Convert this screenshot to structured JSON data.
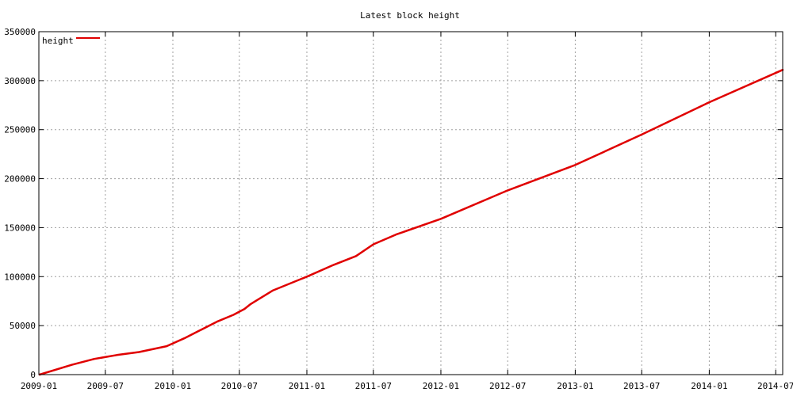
{
  "chart_data": {
    "type": "line",
    "title": "Latest block height",
    "xlabel": "",
    "ylabel": "",
    "x_ticks": [
      "2009-01",
      "2009-07",
      "2010-01",
      "2010-07",
      "2011-01",
      "2011-07",
      "2012-01",
      "2012-07",
      "2013-01",
      "2013-07",
      "2014-01",
      "2014-07"
    ],
    "y_ticks": [
      0,
      50000,
      100000,
      150000,
      200000,
      250000,
      300000,
      350000
    ],
    "xlim": [
      "2009-01-01",
      "2014-07-20"
    ],
    "ylim": [
      0,
      350000
    ],
    "grid": true,
    "legend_position": "top-left",
    "series": [
      {
        "name": "height",
        "color": "#e00000",
        "points": [
          [
            "2009-01-03",
            0
          ],
          [
            "2009-04-01",
            10000
          ],
          [
            "2009-06-01",
            16000
          ],
          [
            "2009-08-01",
            20000
          ],
          [
            "2009-10-01",
            23000
          ],
          [
            "2009-12-15",
            29000
          ],
          [
            "2010-02-01",
            37000
          ],
          [
            "2010-03-15",
            45000
          ],
          [
            "2010-05-01",
            54000
          ],
          [
            "2010-06-15",
            61000
          ],
          [
            "2010-07-15",
            67000
          ],
          [
            "2010-08-01",
            72000
          ],
          [
            "2010-10-01",
            86000
          ],
          [
            "2011-01-01",
            100000
          ],
          [
            "2011-03-15",
            112000
          ],
          [
            "2011-05-15",
            121000
          ],
          [
            "2011-07-01",
            133000
          ],
          [
            "2011-09-01",
            143000
          ],
          [
            "2012-01-01",
            159000
          ],
          [
            "2012-07-01",
            188000
          ],
          [
            "2013-01-01",
            214000
          ],
          [
            "2013-07-01",
            245000
          ],
          [
            "2014-01-01",
            278000
          ],
          [
            "2014-07-20",
            311000
          ]
        ]
      }
    ]
  }
}
